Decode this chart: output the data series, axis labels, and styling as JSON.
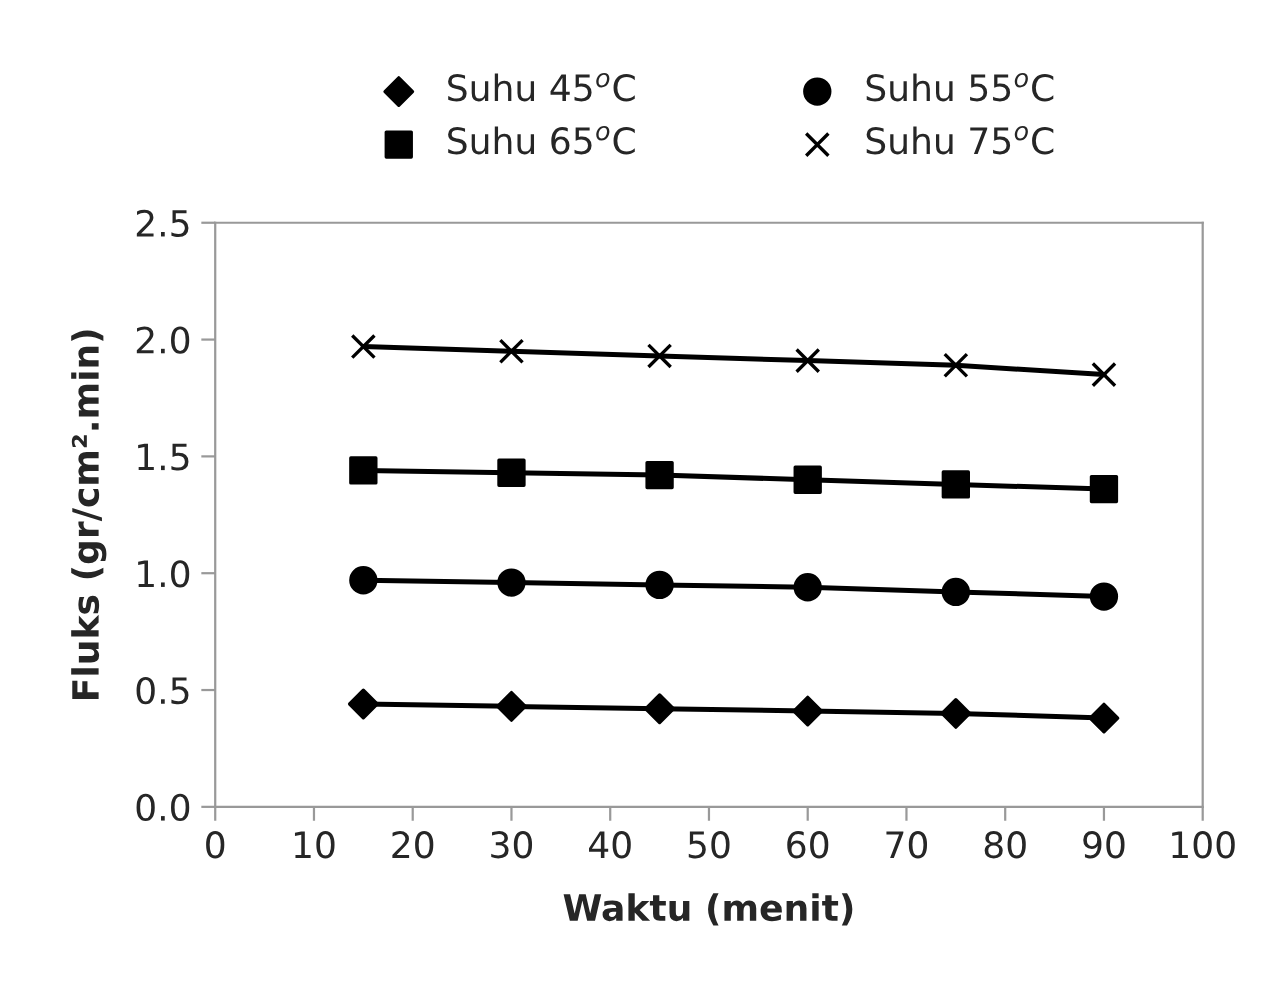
{
  "chart_data": {
    "type": "line",
    "xlabel": "Waktu (menit)",
    "ylabel": "Fluks (gr/cm².min)",
    "x": [
      15,
      30,
      45,
      60,
      75,
      90
    ],
    "series": [
      {
        "name": "Suhu 45$^{o}$C",
        "color": "#000000",
        "marker": "diamond",
        "values": [
          0.44,
          0.43,
          0.42,
          0.41,
          0.4,
          0.38
        ]
      },
      {
        "name": "Suhu 55$^{o}$C",
        "color": "#000000",
        "marker": "circle",
        "values": [
          0.97,
          0.96,
          0.95,
          0.94,
          0.92,
          0.9
        ]
      },
      {
        "name": "Suhu 65$^{o}$C",
        "color": "#000000",
        "marker": "square",
        "values": [
          1.44,
          1.43,
          1.42,
          1.4,
          1.38,
          1.36
        ]
      },
      {
        "name": "Suhu 75$^{o}$C",
        "color": "#000000",
        "marker": "cross",
        "values": [
          1.97,
          1.95,
          1.93,
          1.91,
          1.89,
          1.85
        ]
      }
    ],
    "xlim": [
      0,
      100
    ],
    "xticks": [
      0,
      10,
      20,
      30,
      40,
      50,
      60,
      70,
      80,
      90,
      100
    ],
    "ylim": [
      0,
      2.5
    ],
    "yticks": [
      {
        "value": 0,
        "label": "0.0"
      },
      {
        "value": 0.5,
        "label": "0.5"
      },
      {
        "value": 1,
        "label": "1.0"
      },
      {
        "value": 1.5,
        "label": "1.5"
      },
      {
        "value": 2,
        "label": "2.0"
      },
      {
        "value": 2.5,
        "label": "2.5"
      }
    ],
    "grid": false,
    "legend": "top",
    "line_style": "solid"
  }
}
